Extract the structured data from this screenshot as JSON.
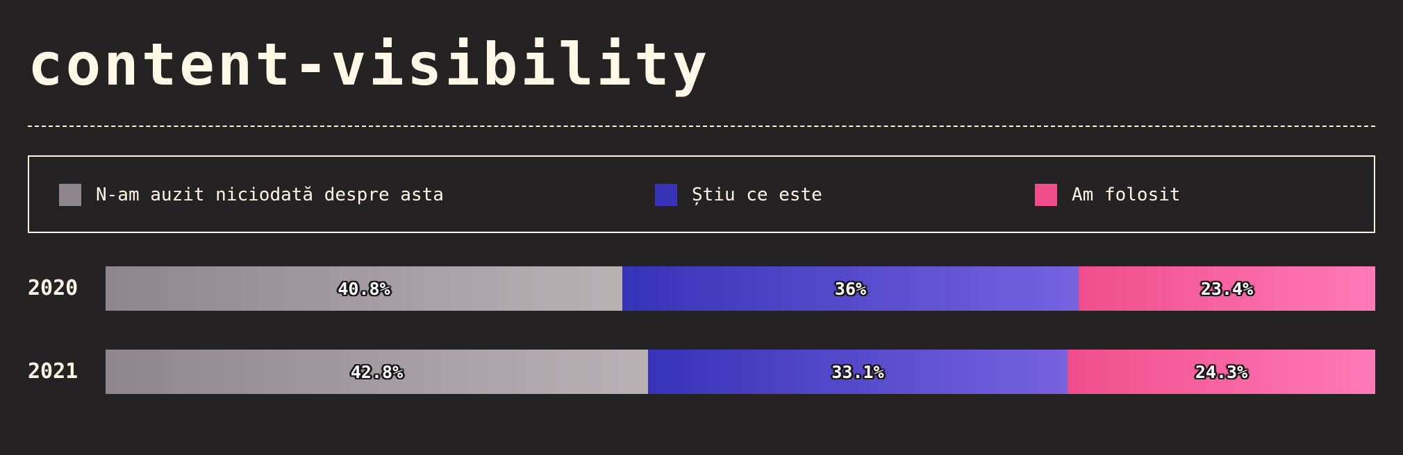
{
  "chart_data": {
    "type": "bar",
    "orientation": "horizontal",
    "stacked": true,
    "title": "content-visibility",
    "categories": [
      "2020",
      "2021"
    ],
    "series": [
      {
        "name": "N-am auzit niciodată despre asta",
        "values": [
          40.8,
          42.8
        ],
        "labels": [
          "40.8%",
          "42.8%"
        ],
        "color": "#8e868b",
        "color_end": "#b9b1b4"
      },
      {
        "name": "Știu ce este",
        "values": [
          36,
          33.1
        ],
        "labels": [
          "36%",
          "33.1%"
        ],
        "color": "#3633b8",
        "color_end": "#7762e0"
      },
      {
        "name": "Am folosit",
        "values": [
          23.4,
          24.3
        ],
        "labels": [
          "23.4%",
          "24.3%"
        ],
        "color": "#f04e8b",
        "color_end": "#ff79b8"
      }
    ],
    "xlim": [
      0,
      100
    ],
    "unit": "%",
    "grid": false,
    "legend": "top"
  },
  "colors": {
    "background": "#252224",
    "text": "#fff8e7"
  }
}
